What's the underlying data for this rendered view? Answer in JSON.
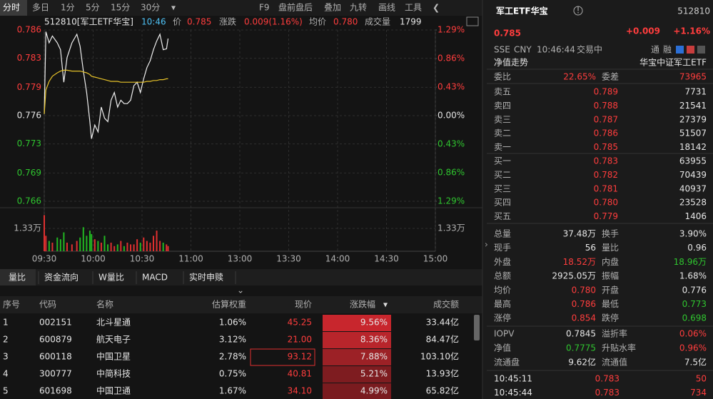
{
  "toolbar": {
    "tabs": [
      "分时",
      "多日",
      "1分",
      "5分",
      "15分",
      "30分"
    ],
    "tools": [
      "F9",
      "盘前盘后",
      "叠加",
      "九转",
      "画线",
      "工具"
    ]
  },
  "chart_data": {
    "type": "line",
    "title": "512810[军工ETF华宝]",
    "info": [
      "10:46",
      "价",
      "0.785",
      "涨跌",
      "0.009(1.16%)",
      "均价",
      "0.780",
      "成交量",
      "1799"
    ],
    "x": [
      "09:30",
      "09:31",
      "09:33",
      "09:35",
      "09:38",
      "09:40",
      "09:42",
      "09:44",
      "09:47",
      "09:50",
      "09:52",
      "09:54",
      "09:56",
      "09:58",
      "09:59",
      "10:01",
      "10:03",
      "10:05",
      "10:07",
      "10:09",
      "10:11",
      "10:13",
      "10:15",
      "10:17",
      "10:19",
      "10:21",
      "10:23",
      "10:25",
      "10:27",
      "10:29",
      "10:31",
      "10:33",
      "10:35",
      "10:37",
      "10:39",
      "10:41",
      "10:43",
      "10:45",
      "10:46"
    ],
    "series": [
      {
        "color": "#f0f0f0",
        "values": [
          0.7762,
          0.7858,
          0.7845,
          0.7853,
          0.7845,
          0.7837,
          0.7799,
          0.7828,
          0.7845,
          0.7855,
          0.7841,
          0.7812,
          0.7787,
          0.7753,
          0.7733,
          0.7749,
          0.7741,
          0.777,
          0.7757,
          0.7753,
          0.7778,
          0.7787,
          0.777,
          0.7778,
          0.7774,
          0.7774,
          0.7778,
          0.7795,
          0.7799,
          0.7787,
          0.7803,
          0.7816,
          0.7824,
          0.7837,
          0.7847,
          0.7855,
          0.7837,
          0.7838,
          0.785
        ]
      },
      {
        "color": "#e6c229",
        "values": [
          0.7762,
          0.779,
          0.78,
          0.7806,
          0.781,
          0.7812,
          0.7813,
          0.7813,
          0.7812,
          0.7812,
          0.7812,
          0.7811,
          0.781,
          0.7808,
          0.7806,
          0.7805,
          0.7804,
          0.7803,
          0.7802,
          0.7801,
          0.78,
          0.78,
          0.78,
          0.7799,
          0.7799,
          0.7799,
          0.7799,
          0.7799,
          0.7799,
          0.7799,
          0.7799,
          0.78,
          0.78,
          0.7801,
          0.7801,
          0.7802,
          0.7802,
          0.7803,
          0.7803
        ]
      }
    ],
    "xlim": [
      "09:30",
      "15:00"
    ],
    "xticks": [
      "09:30",
      "10:00",
      "10:30",
      "11:00",
      "13:00",
      "13:30",
      "14:00",
      "14:30",
      "15:00"
    ],
    "ylim": [
      0.766,
      0.786
    ],
    "yticks": [
      0.766,
      {
        "value": 0.7693,
        "label": "0.769"
      },
      {
        "value": 0.7727,
        "label": "0.773"
      },
      0.776,
      {
        "value": 0.7793,
        "label": "0.779"
      },
      {
        "value": 0.7827,
        "label": "0.783"
      },
      0.786
    ],
    "y2lim": [
      -1.29,
      1.29
    ],
    "y2ticks": [
      {
        "value": -1.29,
        "label": "1.29%"
      },
      {
        "value": -0.86,
        "label": "0.86%"
      },
      {
        "value": -0.43,
        "label": "0.43%"
      },
      {
        "value": 0,
        "label": "0.00%"
      },
      {
        "value": 0.43,
        "label": "0.43%"
      },
      {
        "value": 0.86,
        "label": "0.86%"
      },
      {
        "value": 1.29,
        "label": "1.29%"
      }
    ],
    "grid": true,
    "volume": {
      "values": [
        21000,
        9000,
        6000,
        5000,
        8000,
        7000,
        11000,
        5000,
        4000,
        6000,
        8000,
        14000,
        9000,
        12000,
        10000,
        7000,
        6000,
        5000,
        9000,
        4000,
        5000,
        3000,
        4000,
        6000,
        3000,
        5000,
        4000,
        4000,
        7000,
        5000,
        8000,
        6000,
        5000,
        9000,
        12000,
        6000,
        5000,
        4000,
        3000
      ],
      "ylim": [
        0,
        21600
      ],
      "yticks": [
        {
          "value": 13300,
          "label": "1.33万"
        }
      ],
      "up_color": "#e03030",
      "down_color": "#22b822"
    }
  },
  "bottom_tabs": [
    "量比",
    "资金流向",
    "W量比",
    "MACD",
    "实时申赎"
  ],
  "table": {
    "header": [
      "序号",
      "代码",
      "名称",
      "估算权重",
      "现价",
      "涨跌幅",
      "成交额"
    ],
    "rows": [
      [
        "1",
        "002151",
        "北斗星通",
        "1.06%",
        "45.25",
        "9.56%",
        "33.44亿"
      ],
      [
        "2",
        "600879",
        "航天电子",
        "3.12%",
        "21.00",
        "8.36%",
        "84.47亿"
      ],
      [
        "3",
        "600118",
        "中国卫星",
        "2.78%",
        "93.12",
        "7.88%",
        "103.10亿"
      ],
      [
        "4",
        "300777",
        "中简科技",
        "0.75%",
        "40.81",
        "5.21%",
        "13.93亿"
      ],
      [
        "5",
        "601698",
        "中国卫通",
        "1.67%",
        "34.10",
        "4.99%",
        "65.82亿"
      ]
    ]
  },
  "quote": {
    "name": "军工ETF华宝",
    "code": "512810",
    "price": "0.785",
    "change": "+0.009",
    "change_pct": "+1.16%",
    "market": [
      "SSE",
      "CNY",
      "10:46:44",
      "交易中"
    ],
    "badges": [
      "通",
      "融"
    ],
    "nav_title": "净值走势",
    "fund_name": "华宝中证军工ETF",
    "ratio": [
      "委比",
      "22.65%",
      "委差",
      "73965"
    ],
    "asks": [
      [
        "卖五",
        "0.789",
        "7731"
      ],
      [
        "卖四",
        "0.788",
        "21541"
      ],
      [
        "卖三",
        "0.787",
        "27379"
      ],
      [
        "卖二",
        "0.786",
        "51507"
      ],
      [
        "卖一",
        "0.785",
        "18142"
      ]
    ],
    "bids": [
      [
        "买一",
        "0.783",
        "63955"
      ],
      [
        "买二",
        "0.782",
        "70439"
      ],
      [
        "买三",
        "0.781",
        "40937"
      ],
      [
        "买四",
        "0.780",
        "23528"
      ],
      [
        "买五",
        "0.779",
        "1406"
      ]
    ],
    "stats": [
      [
        "总量",
        "37.48万",
        "换手",
        "3.90%"
      ],
      [
        "现手",
        "56",
        "量比",
        "0.96"
      ],
      [
        "外盘",
        "18.52万",
        "内盘",
        "18.96万"
      ],
      [
        "总额",
        "2925.05万",
        "振幅",
        "1.68%"
      ],
      [
        "均价",
        "0.780",
        "开盘",
        "0.776"
      ],
      [
        "最高",
        "0.786",
        "最低",
        "0.773"
      ],
      [
        "涨停",
        "0.854",
        "跌停",
        "0.698"
      ]
    ],
    "iopv": [
      [
        "IOPV",
        "0.7845",
        "溢折率",
        "0.06%"
      ],
      [
        "净值",
        "0.7775",
        "升贴水率",
        "0.96%"
      ],
      [
        "流通盘",
        "9.62亿",
        "流通值",
        "7.5亿"
      ]
    ],
    "ticks": [
      [
        "10:45:11",
        "0.783",
        "50"
      ],
      [
        "10:45:44",
        "0.783",
        "734"
      ]
    ]
  }
}
